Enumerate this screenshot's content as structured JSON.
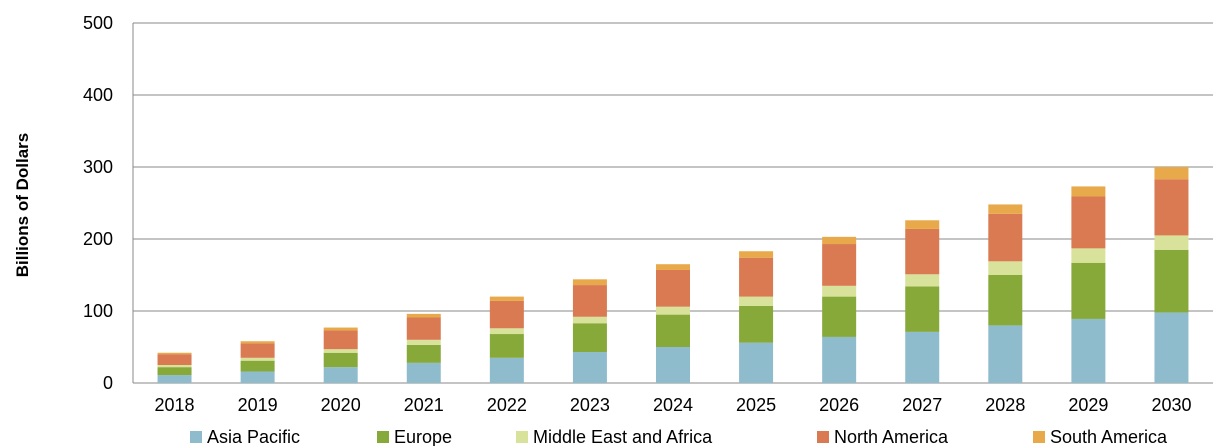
{
  "chart_data": {
    "type": "bar",
    "stacked": true,
    "title": "",
    "xlabel": "",
    "ylabel": "Billions of Dollars",
    "ylim": [
      0,
      500
    ],
    "yticks": [
      "0",
      "100",
      "200",
      "300",
      "400",
      "500"
    ],
    "grid": true,
    "legend_position": "bottom",
    "categories": [
      "2018",
      "2019",
      "2020",
      "2021",
      "2022",
      "2023",
      "2024",
      "2025",
      "2026",
      "2027",
      "2028",
      "2029",
      "2030"
    ],
    "series": [
      {
        "name": "Asia Pacific",
        "color": "#8fbccc",
        "values": [
          11,
          16,
          22,
          28,
          35,
          43,
          50,
          56,
          64,
          71,
          80,
          89,
          98
        ]
      },
      {
        "name": "Europe",
        "color": "#86a93a",
        "values": [
          11,
          15,
          20,
          25,
          33,
          40,
          45,
          51,
          56,
          63,
          70,
          78,
          87
        ]
      },
      {
        "name": "Middle East and Africa",
        "color": "#d9e29a",
        "values": [
          3,
          4,
          5,
          7,
          8,
          9,
          11,
          13,
          15,
          17,
          19,
          20,
          20
        ]
      },
      {
        "name": "North America",
        "color": "#d97a52",
        "values": [
          15,
          20,
          26,
          31,
          38,
          44,
          51,
          54,
          58,
          63,
          66,
          72,
          78
        ]
      },
      {
        "name": "South America",
        "color": "#e8a94a",
        "values": [
          2,
          3,
          4,
          5,
          6,
          8,
          8,
          9,
          10,
          12,
          13,
          14,
          17
        ]
      }
    ]
  }
}
